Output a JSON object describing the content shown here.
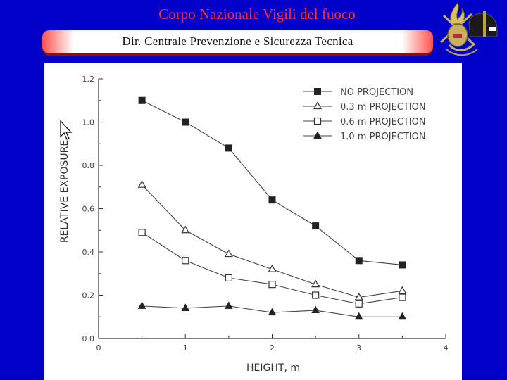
{
  "header": {
    "title": "Corpo Nazionale Vigili del fuoco",
    "subtitle": "Dir. Centrale Prevenzione e Sicurezza Tecnica"
  },
  "logo": {
    "icon": "fire-brigade-emblem-icon"
  },
  "colors": {
    "background": "#0000c8",
    "title": "#ff2a2a",
    "banner": "#ff4040"
  },
  "chart_data": {
    "type": "line",
    "xlabel": "HEIGHT, m",
    "ylabel": "RELATIVE EXPOSURE",
    "xlim": [
      0,
      4
    ],
    "ylim": [
      0,
      1.2
    ],
    "x_ticks": [
      "0",
      "1",
      "2",
      "3",
      "4"
    ],
    "y_ticks": [
      "0.0",
      "0.2",
      "0.4",
      "0.6",
      "0.8",
      "1.0",
      "1.2"
    ],
    "x": [
      0.5,
      1.0,
      1.5,
      2.0,
      2.5,
      3.0,
      3.5
    ],
    "legend_position": "top-right",
    "series": [
      {
        "name": "NO PROJECTION",
        "marker": "filled-square",
        "values": [
          1.1,
          1.0,
          0.88,
          0.64,
          0.52,
          0.36,
          0.34
        ]
      },
      {
        "name": "0.3 m PROJECTION",
        "marker": "open-triangle",
        "values": [
          0.71,
          0.5,
          0.39,
          0.32,
          0.25,
          0.19,
          0.22
        ]
      },
      {
        "name": "0.6 m PROJECTION",
        "marker": "open-square",
        "values": [
          0.49,
          0.36,
          0.28,
          0.25,
          0.2,
          0.16,
          0.19
        ]
      },
      {
        "name": "1.0 m PROJECTION",
        "marker": "filled-triangle",
        "values": [
          0.15,
          0.14,
          0.15,
          0.12,
          0.13,
          0.1,
          0.1
        ]
      }
    ]
  }
}
